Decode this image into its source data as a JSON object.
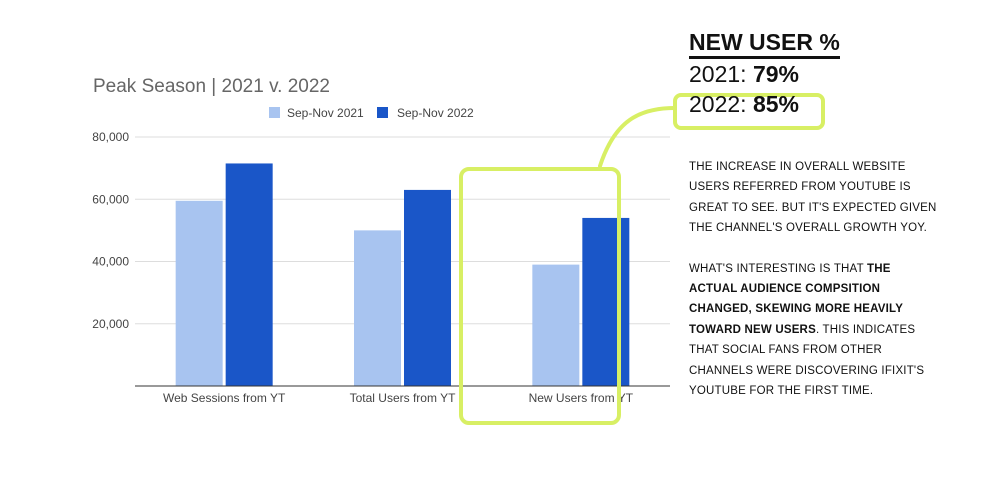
{
  "chart_data": {
    "type": "bar",
    "title": "Peak Season | 2021 v. 2022",
    "categories": [
      "Web Sessions from YT",
      "Total Users from YT",
      "New Users from YT"
    ],
    "series": [
      {
        "name": "Sep-Nov 2021",
        "values": [
          59500,
          50000,
          39000
        ],
        "color": "#a8c4f0"
      },
      {
        "name": "Sep-Nov 2022",
        "values": [
          71500,
          63000,
          54000
        ],
        "color": "#1a56c8"
      }
    ],
    "y_ticks": [
      "80,000",
      "60,000",
      "40,000",
      "20,000"
    ],
    "y_tick_values": [
      80000,
      60000,
      40000,
      20000
    ],
    "ylim": [
      0,
      80000
    ],
    "xlabel": "",
    "ylabel": "",
    "grid": true,
    "legend": "top",
    "highlight": {
      "category": "New Users from YT",
      "color": "#d8ef64"
    }
  },
  "callout": {
    "heading": "NEW USER %",
    "rows": [
      {
        "year": "2021:",
        "value": "79%"
      },
      {
        "year": "2022:",
        "value": "85%"
      }
    ]
  },
  "body": {
    "p1": "The increase in overall website users referred from YouTube is great to see. But it's expected given the channel's overall growth YoY.",
    "p2_intro": "What's interesting is that ",
    "p2_bold": "the actual audience compsition changed, skewing more heavily toward new users",
    "p2_rest": ". This indicates that social fans from other channels were discovering iFixit's YouTube for the first time."
  }
}
